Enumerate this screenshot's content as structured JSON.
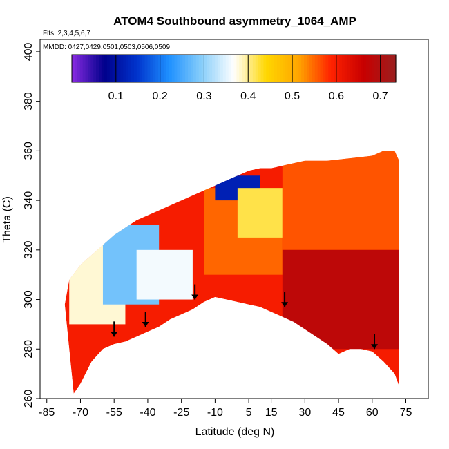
{
  "chart_data": {
    "type": "heatmap",
    "title": "ATOM4 Southbound asymmetry_1064_AMP",
    "flights_note": "Flts: 2,3,4,5,6,7",
    "dates_note": "MMDD: 0427,0429,0501,0503,0506,0509",
    "xlabel": "Latitude (deg N)",
    "ylabel": "Theta (C)",
    "xlim": [
      -88,
      85
    ],
    "ylim": [
      260,
      405
    ],
    "xticks": [
      -85,
      -70,
      -55,
      -40,
      -25,
      -10,
      5,
      15,
      30,
      45,
      60,
      75
    ],
    "yticks": [
      260,
      280,
      300,
      320,
      340,
      360,
      380,
      400
    ],
    "colorbar": {
      "range": [
        0,
        0.735
      ],
      "ticks": [
        0.1,
        0.2,
        0.3,
        0.4,
        0.5,
        0.6,
        0.7
      ],
      "colors": [
        "#8a2be2",
        "#00008b",
        "#0033cc",
        "#1e90ff",
        "#87cefa",
        "#ffffff",
        "#ffd700",
        "#ffa500",
        "#ff2200",
        "#c80000",
        "#9b1f1f"
      ]
    },
    "floor": [
      [
        -73,
        262
      ],
      [
        -70,
        266
      ],
      [
        -65,
        275
      ],
      [
        -60,
        280
      ],
      [
        -55,
        282
      ],
      [
        -50,
        283
      ],
      [
        -45,
        285
      ],
      [
        -40,
        287
      ],
      [
        -35,
        289
      ],
      [
        -30,
        292
      ],
      [
        -25,
        294
      ],
      [
        -20,
        296
      ],
      [
        -15,
        299
      ],
      [
        -10,
        301
      ],
      [
        -5,
        300
      ],
      [
        0,
        299
      ],
      [
        5,
        298
      ],
      [
        10,
        297
      ],
      [
        15,
        295
      ],
      [
        20,
        293
      ],
      [
        25,
        291
      ],
      [
        30,
        288
      ],
      [
        35,
        285
      ],
      [
        40,
        282
      ],
      [
        45,
        278
      ],
      [
        50,
        280
      ],
      [
        55,
        280
      ],
      [
        60,
        279
      ],
      [
        65,
        275
      ],
      [
        70,
        270
      ],
      [
        72,
        265
      ]
    ],
    "ceiling": [
      [
        -77,
        298
      ],
      [
        -75,
        308
      ],
      [
        -70,
        314
      ],
      [
        -65,
        318
      ],
      [
        -60,
        322
      ],
      [
        -55,
        326
      ],
      [
        -50,
        329
      ],
      [
        -45,
        332
      ],
      [
        -40,
        334
      ],
      [
        -35,
        336
      ],
      [
        -30,
        338
      ],
      [
        -25,
        340
      ],
      [
        -20,
        342
      ],
      [
        -15,
        344
      ],
      [
        -10,
        346
      ],
      [
        -5,
        348
      ],
      [
        0,
        350
      ],
      [
        5,
        352
      ],
      [
        10,
        353
      ],
      [
        15,
        353
      ],
      [
        20,
        354
      ],
      [
        25,
        355
      ],
      [
        30,
        356
      ],
      [
        40,
        356
      ],
      [
        50,
        357
      ],
      [
        60,
        358
      ],
      [
        65,
        360
      ],
      [
        70,
        360
      ],
      [
        72,
        356
      ]
    ],
    "regions": [
      {
        "lat": [
          -75,
          -50
        ],
        "theta": [
          290,
          330
        ],
        "value": 0.38
      },
      {
        "lat": [
          -60,
          -35
        ],
        "theta": [
          298,
          330
        ],
        "value": 0.28
      },
      {
        "lat": [
          -45,
          -20
        ],
        "theta": [
          300,
          320
        ],
        "value": 0.36
      },
      {
        "lat": [
          -15,
          20
        ],
        "theta": [
          310,
          345
        ],
        "value": 0.55
      },
      {
        "lat": [
          -10,
          10
        ],
        "theta": [
          340,
          350
        ],
        "value": 0.12
      },
      {
        "lat": [
          0,
          20
        ],
        "theta": [
          325,
          345
        ],
        "value": 0.42
      },
      {
        "lat": [
          20,
          72
        ],
        "theta": [
          320,
          360
        ],
        "value": 0.56
      },
      {
        "lat": [
          20,
          72
        ],
        "theta": [
          280,
          320
        ],
        "value": 0.68
      }
    ],
    "arrows": [
      {
        "lat": -55,
        "theta": 285
      },
      {
        "lat": -41,
        "theta": 289
      },
      {
        "lat": -19,
        "theta": 300
      },
      {
        "lat": 21,
        "theta": 297
      },
      {
        "lat": 61,
        "theta": 280
      }
    ]
  }
}
